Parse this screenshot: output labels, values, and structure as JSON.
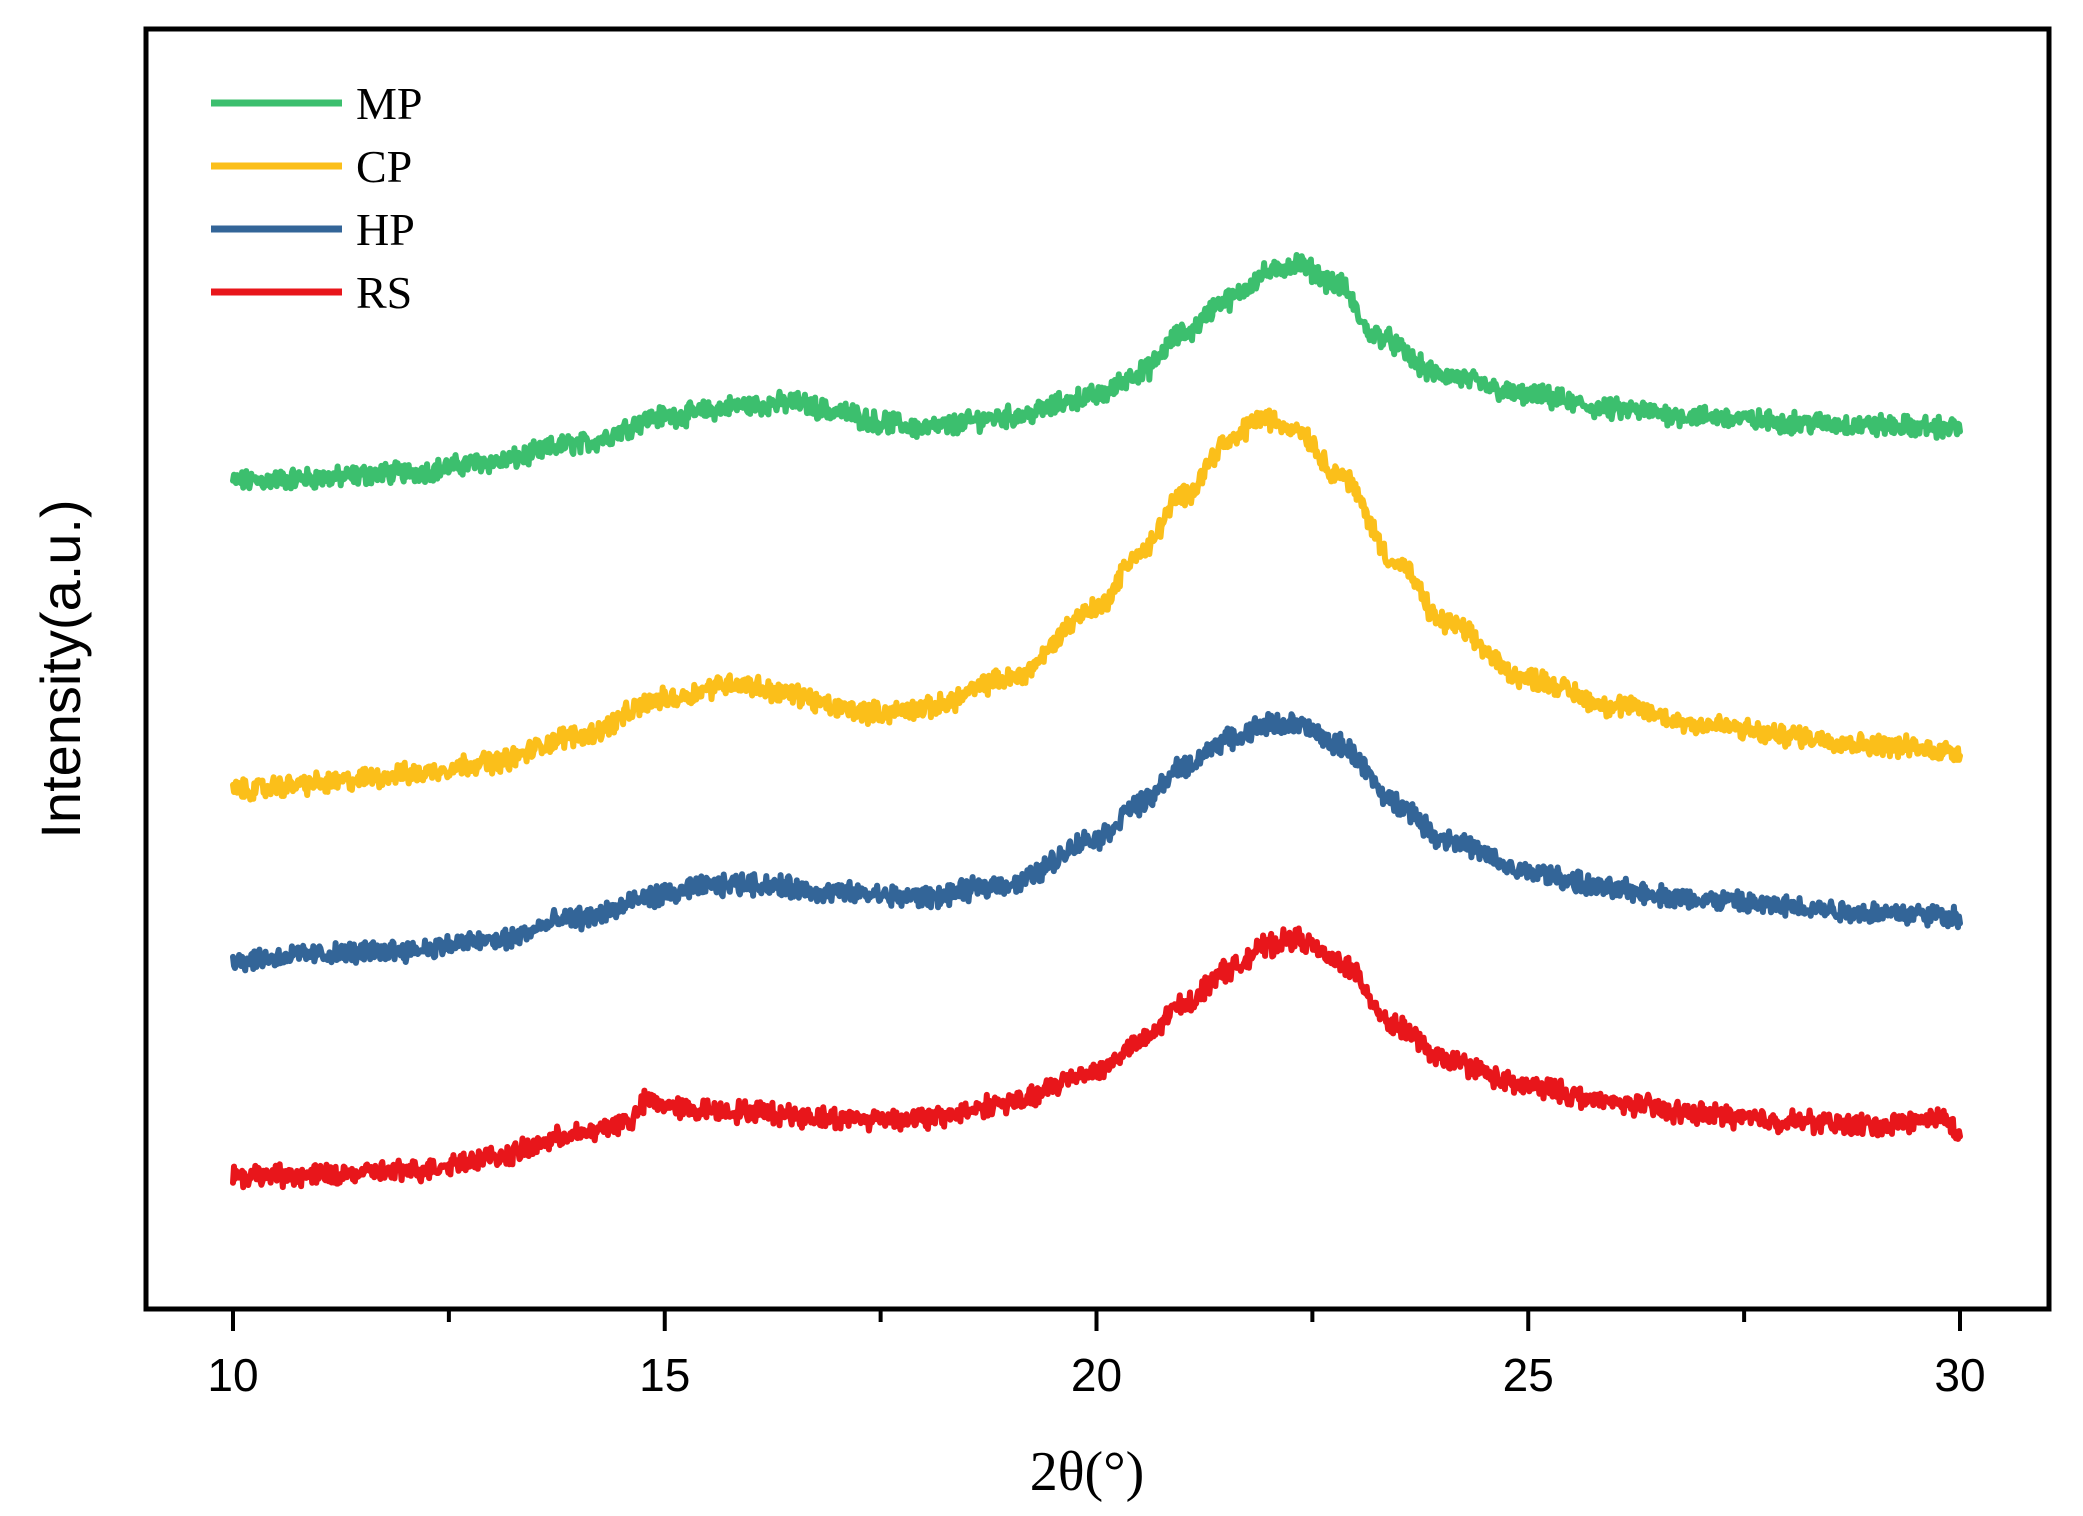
{
  "chart_data": {
    "type": "line",
    "title": "",
    "xlabel": "2θ(°)",
    "ylabel": "Intensity(a.u.)",
    "xlim": [
      9,
      31
    ],
    "ylim": [
      0,
      1
    ],
    "x_ticks": [
      10,
      15,
      20,
      25,
      30
    ],
    "x_tick_labels": [
      "10",
      "15",
      "20",
      "25",
      "30"
    ],
    "y_ticks_shown": false,
    "grid": false,
    "legend_position": "top-left",
    "series": [
      {
        "name": "MP",
        "color": "#3cbf6e",
        "x": [
          10,
          11,
          12,
          13,
          14,
          15,
          16,
          16.5,
          17,
          17.5,
          18,
          19,
          20,
          20.5,
          21,
          21.5,
          22,
          22.3,
          22.8,
          23.2,
          24,
          25,
          26,
          27,
          28,
          29,
          30
        ],
        "y": [
          0.683,
          0.686,
          0.691,
          0.7,
          0.716,
          0.74,
          0.75,
          0.752,
          0.744,
          0.735,
          0.73,
          0.74,
          0.758,
          0.778,
          0.812,
          0.842,
          0.866,
          0.874,
          0.856,
          0.812,
          0.776,
          0.758,
          0.746,
          0.74,
          0.735,
          0.732,
          0.73
        ]
      },
      {
        "name": "CP",
        "color": "#fbbf1a",
        "x": [
          10,
          11,
          12,
          13,
          14,
          15,
          15.8,
          16.5,
          17,
          17.5,
          18,
          19,
          20,
          20.5,
          21,
          21.5,
          21.9,
          22.3,
          22.8,
          23.5,
          24,
          25,
          26,
          27,
          28,
          29,
          30
        ],
        "y": [
          0.412,
          0.418,
          0.426,
          0.437,
          0.46,
          0.492,
          0.506,
          0.496,
          0.484,
          0.48,
          0.484,
          0.51,
          0.572,
          0.62,
          0.67,
          0.716,
          0.738,
          0.73,
          0.69,
          0.61,
          0.56,
          0.51,
          0.486,
          0.47,
          0.46,
          0.452,
          0.446
        ]
      },
      {
        "name": "HP",
        "color": "#336598",
        "x": [
          10,
          11,
          12,
          13,
          14,
          15,
          15.5,
          16,
          17,
          18,
          19,
          20,
          20.5,
          21,
          21.5,
          22,
          22.3,
          22.8,
          23.5,
          24,
          25,
          26,
          27,
          28,
          29,
          30
        ],
        "y": [
          0.263,
          0.268,
          0.272,
          0.28,
          0.3,
          0.32,
          0.328,
          0.33,
          0.322,
          0.318,
          0.33,
          0.37,
          0.4,
          0.432,
          0.456,
          0.47,
          0.47,
          0.452,
          0.4,
          0.37,
          0.34,
          0.325,
          0.316,
          0.31,
          0.305,
          0.302
        ]
      },
      {
        "name": "RS",
        "color": "#e8161b",
        "x": [
          10,
          11,
          12,
          13,
          14,
          14.6,
          14.8,
          15,
          15.3,
          16,
          17,
          18,
          19,
          20,
          20.5,
          21,
          21.5,
          22,
          22.3,
          22.8,
          23.5,
          24,
          25,
          26,
          27,
          28,
          29,
          29.8,
          30
        ],
        "y": [
          0.074,
          0.074,
          0.078,
          0.09,
          0.11,
          0.122,
          0.14,
          0.136,
          0.132,
          0.13,
          0.124,
          0.124,
          0.138,
          0.166,
          0.19,
          0.224,
          0.254,
          0.276,
          0.282,
          0.262,
          0.204,
          0.176,
          0.152,
          0.138,
          0.128,
          0.122,
          0.118,
          0.124,
          0.112
        ]
      }
    ]
  }
}
